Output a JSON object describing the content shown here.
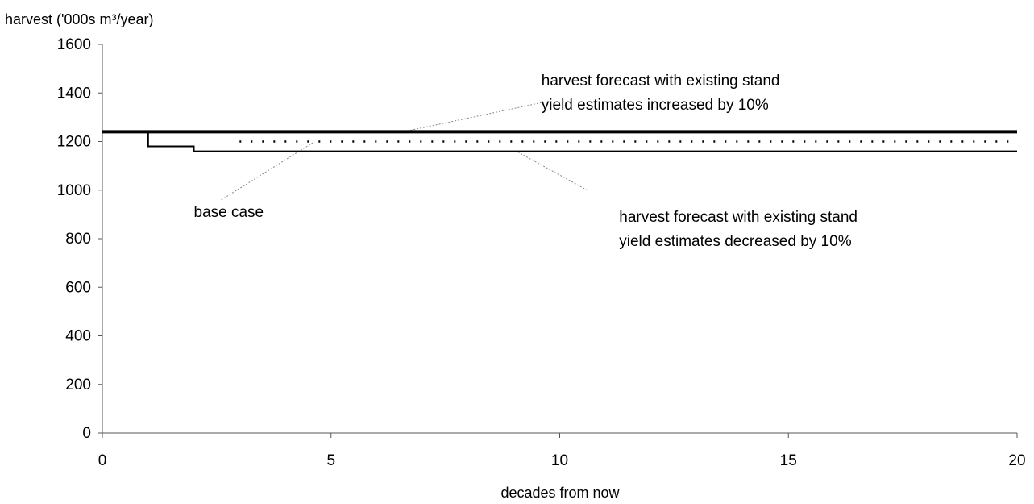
{
  "chart_data": {
    "type": "line",
    "ylabel": "harvest ('000s m³/year)",
    "xlabel": "decades from now",
    "xlim": [
      0,
      20
    ],
    "ylim": [
      0,
      1600
    ],
    "x_ticks": [
      0,
      5,
      10,
      15,
      20
    ],
    "y_ticks": [
      0,
      200,
      400,
      600,
      800,
      1000,
      1200,
      1400,
      1600
    ],
    "grid": false,
    "series": [
      {
        "key": "increased",
        "style": "thick",
        "points": [
          [
            0,
            1240
          ],
          [
            20,
            1240
          ]
        ]
      },
      {
        "key": "base",
        "style": "dotted",
        "points": [
          [
            3,
            1200
          ],
          [
            20,
            1200
          ]
        ]
      },
      {
        "key": "decreased",
        "style": "step",
        "points": [
          [
            0,
            1240
          ],
          [
            1,
            1240
          ],
          [
            1,
            1180
          ],
          [
            2,
            1180
          ],
          [
            2,
            1160
          ],
          [
            20,
            1160
          ]
        ]
      }
    ],
    "annotations": [
      {
        "key": "ann-increased",
        "lines": [
          "harvest forecast with existing stand",
          "yield estimates increased by 10%"
        ],
        "label_at": [
          9.6,
          1430
        ],
        "pointer_from": [
          9.6,
          1360
        ],
        "pointer_to": [
          6.7,
          1245
        ]
      },
      {
        "key": "ann-base",
        "lines": [
          "base case"
        ],
        "label_at": [
          2.0,
          890
        ],
        "pointer_from": [
          2.6,
          960
        ],
        "pointer_to": [
          4.6,
          1195
        ]
      },
      {
        "key": "ann-decreased",
        "lines": [
          "harvest forecast with existing stand",
          "yield estimates decreased by 10%"
        ],
        "label_at": [
          11.3,
          870
        ],
        "pointer_from": [
          10.6,
          1000
        ],
        "pointer_to": [
          9.1,
          1155
        ]
      }
    ]
  }
}
